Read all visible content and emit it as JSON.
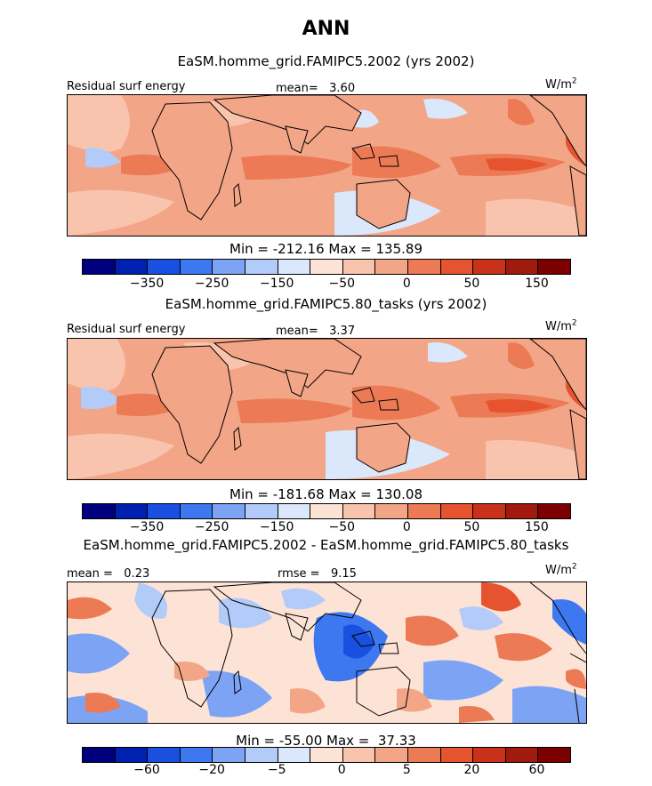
{
  "title": "ANN",
  "panels": [
    {
      "title": "EaSM.homme_grid.FAMIPC5.2002 (yrs 2002)",
      "left_label": "Residual surf energy",
      "stat_label": "mean=   3.60",
      "unit_main": "W/m",
      "unit_exp": "2",
      "minmax": "Min = -212.16 Max = 135.89",
      "ticks": [
        "−350",
        "−250",
        "−150",
        "−50",
        "0",
        "50",
        "150"
      ],
      "background": "#f3a587"
    },
    {
      "title": "EaSM.homme_grid.FAMIPC5.80_tasks (yrs 2002)",
      "left_label": "Residual surf energy",
      "stat_label": "mean=   3.37",
      "unit_main": "W/m",
      "unit_exp": "2",
      "minmax": "Min = -181.68 Max = 130.08",
      "ticks": [
        "−350",
        "−250",
        "−150",
        "−50",
        "0",
        "50",
        "150"
      ],
      "background": "#f3a587"
    },
    {
      "title": "EaSM.homme_grid.FAMIPC5.2002 - EaSM.homme_grid.FAMIPC5.80_tasks",
      "left_label": "mean =   0.23",
      "stat_label": "rmse =   9.15",
      "unit_main": "W/m",
      "unit_exp": "2",
      "minmax": "Min = -55.00 Max =  37.33",
      "ticks": [
        "−60",
        "−20",
        "−5",
        "0",
        "5",
        "20",
        "60"
      ],
      "background": "#fde3d6"
    }
  ],
  "colorbar_colors": [
    "#00007f",
    "#0020b0",
    "#1a50e0",
    "#3d78f0",
    "#7da3f5",
    "#b3cbf8",
    "#dbe7fb",
    "#fde3d6",
    "#f9c4ae",
    "#f3a587",
    "#ec7a55",
    "#e5532f",
    "#c8321a",
    "#a01a0e",
    "#7d0000"
  ]
}
